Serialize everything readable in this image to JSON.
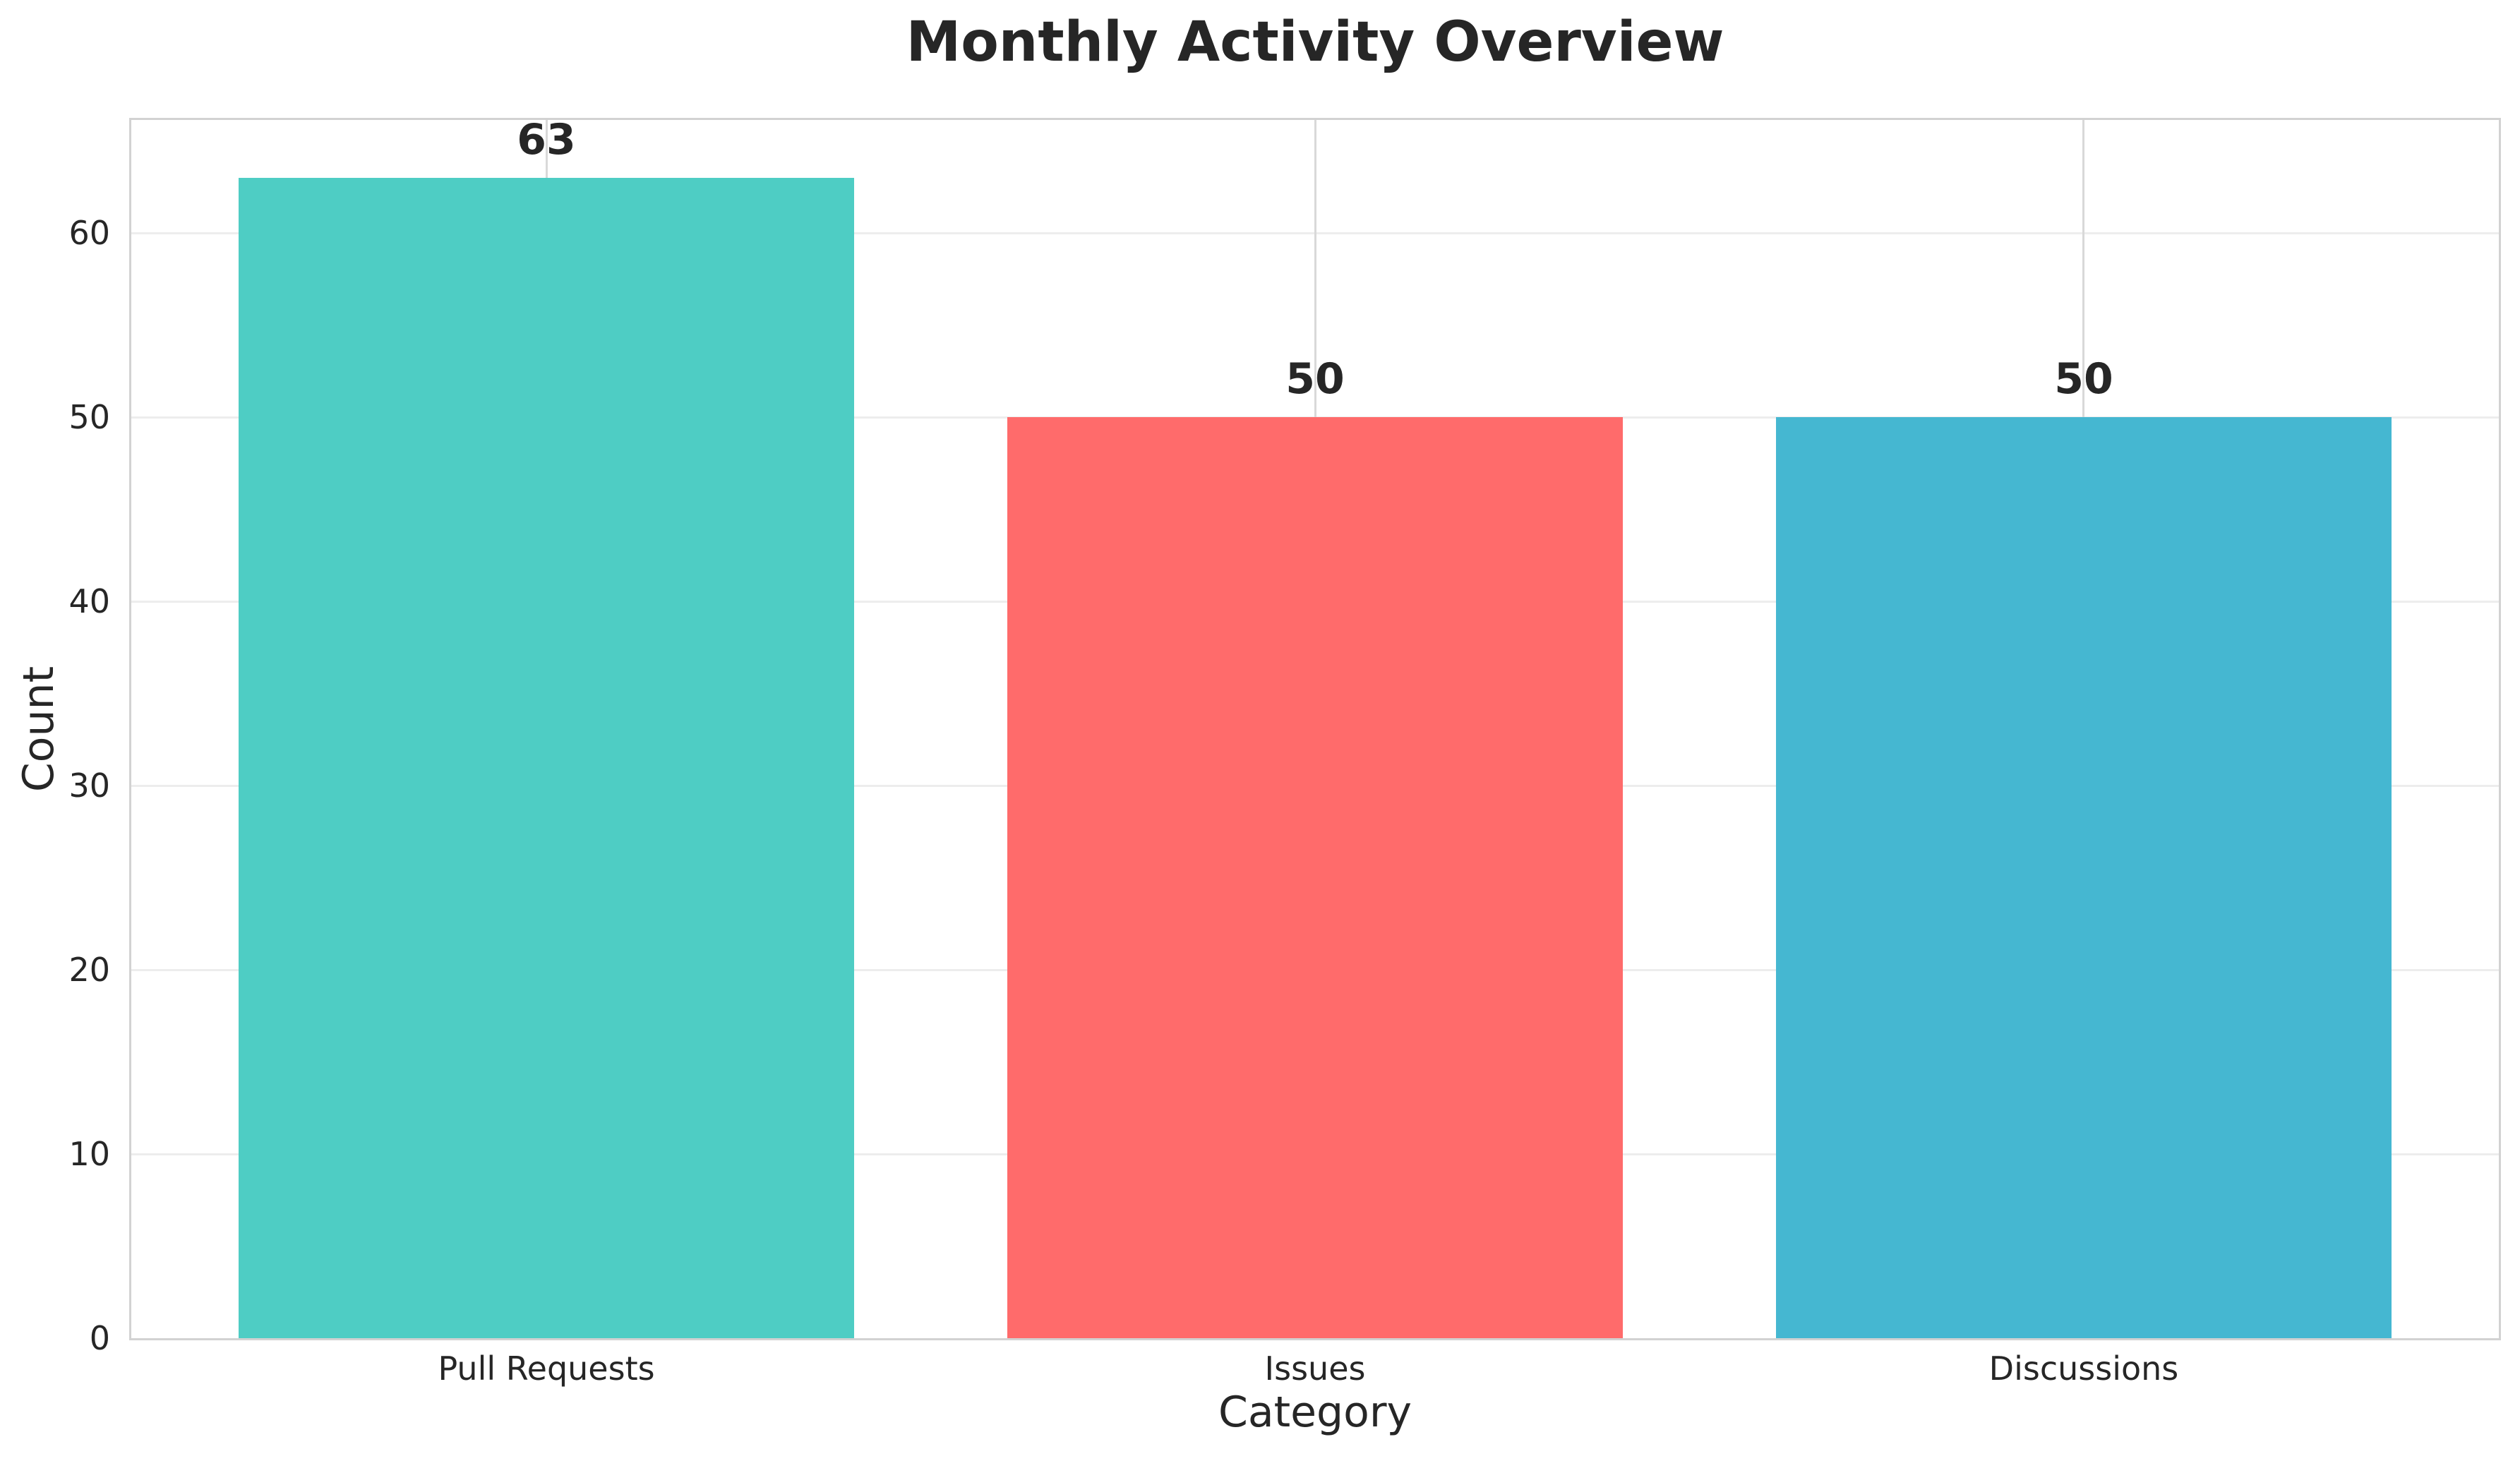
{
  "chart_data": {
    "type": "bar",
    "title": "Monthly Activity Overview",
    "xlabel": "Category",
    "ylabel": "Count",
    "categories": [
      "Pull Requests",
      "Issues",
      "Discussions"
    ],
    "values": [
      63,
      50,
      50
    ],
    "bar_value_labels": [
      "63",
      "50",
      "50"
    ],
    "bar_colors": [
      "#4ECDC4",
      "#FF6B6B",
      "#45B7D1"
    ],
    "yticks": [
      0,
      10,
      20,
      30,
      40,
      50,
      60
    ],
    "ylim": [
      0,
      66.15
    ],
    "xlim": [
      -0.54,
      2.54
    ],
    "bar_width_units": 0.8,
    "grid": true,
    "grid_axes": "both",
    "legend": false,
    "background": "#ffffff"
  },
  "style": {
    "text_color": "#262626",
    "spine_color": "#d2d2d2",
    "hgrid_color": "#ededed",
    "vgrid_color": "#d9d9d9"
  }
}
